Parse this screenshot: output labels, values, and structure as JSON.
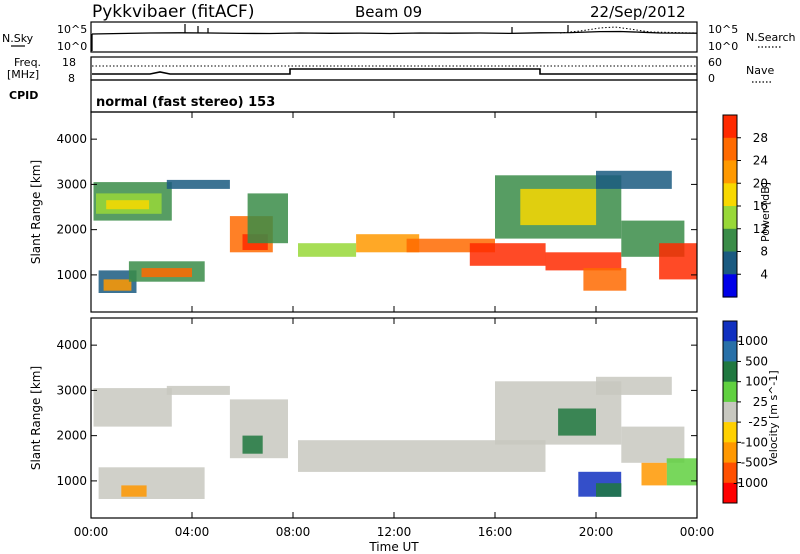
{
  "header": {
    "station": "Pykkvibaer (fitACF)",
    "beam": "Beam 09",
    "date": "22/Sep/2012"
  },
  "noise_panel": {
    "left_label": "N.Sky",
    "right_label": "N.Search",
    "left_ticks": [
      "10^5",
      "10^0"
    ],
    "right_ticks": [
      "10^5",
      "10^0"
    ]
  },
  "freq_panel": {
    "left_label_1": "Freq.",
    "left_label_2": "[MHz]",
    "right_label": "Nave",
    "left_ticks": [
      "18",
      "8"
    ],
    "right_ticks": [
      "60",
      "0"
    ]
  },
  "cpid": {
    "label": "CPID",
    "text": "normal (fast stereo) 153"
  },
  "chart_data": [
    {
      "type": "heatmap",
      "name": "power",
      "ylabel": "Slant Range [km]",
      "yticks": [
        "4000",
        "3000",
        "2000",
        "1000"
      ],
      "ylim": [
        180,
        4600
      ],
      "xlim": [
        0,
        24
      ],
      "colorbar": {
        "label": "Power [dB]",
        "ticks": [
          "28",
          "24",
          "20",
          "16",
          "12",
          "8",
          "4"
        ],
        "colors": [
          "#ff2a00",
          "#ff6a00",
          "#ff9900",
          "#f8d800",
          "#98d838",
          "#3a8c48",
          "#1a5a80",
          "#0000e8"
        ]
      },
      "series": [
        {
          "x0": 0.1,
          "x1": 3.2,
          "y0": 2200,
          "y1": 3050,
          "color": "#3a8c48"
        },
        {
          "x0": 0.2,
          "x1": 2.8,
          "y0": 2350,
          "y1": 2800,
          "color": "#98d838"
        },
        {
          "x0": 0.6,
          "x1": 2.3,
          "y0": 2450,
          "y1": 2650,
          "color": "#f8d800"
        },
        {
          "x0": 0.3,
          "x1": 1.8,
          "y0": 600,
          "y1": 1100,
          "color": "#1a5a80"
        },
        {
          "x0": 0.5,
          "x1": 1.6,
          "y0": 650,
          "y1": 900,
          "color": "#ff9900"
        },
        {
          "x0": 1.5,
          "x1": 4.5,
          "y0": 850,
          "y1": 1300,
          "color": "#3a8c48"
        },
        {
          "x0": 2.0,
          "x1": 4.0,
          "y0": 950,
          "y1": 1150,
          "color": "#ff6a00"
        },
        {
          "x0": 3.0,
          "x1": 5.5,
          "y0": 2900,
          "y1": 3100,
          "color": "#1a5a80"
        },
        {
          "x0": 5.5,
          "x1": 7.2,
          "y0": 1500,
          "y1": 2300,
          "color": "#ff6a00"
        },
        {
          "x0": 6.0,
          "x1": 7.0,
          "y0": 1550,
          "y1": 1900,
          "color": "#ff2a00"
        },
        {
          "x0": 6.2,
          "x1": 7.8,
          "y0": 1700,
          "y1": 2800,
          "color": "#3a8c48"
        },
        {
          "x0": 8.2,
          "x1": 10.5,
          "y0": 1400,
          "y1": 1700,
          "color": "#98d838"
        },
        {
          "x0": 10.5,
          "x1": 13.0,
          "y0": 1500,
          "y1": 1900,
          "color": "#ff9900"
        },
        {
          "x0": 12.5,
          "x1": 16.0,
          "y0": 1500,
          "y1": 1800,
          "color": "#ff6a00"
        },
        {
          "x0": 15.0,
          "x1": 18.0,
          "y0": 1200,
          "y1": 1700,
          "color": "#ff2a00"
        },
        {
          "x0": 16.0,
          "x1": 21.0,
          "y0": 1800,
          "y1": 3200,
          "color": "#3a8c48"
        },
        {
          "x0": 17.0,
          "x1": 20.0,
          "y0": 2100,
          "y1": 2900,
          "color": "#f8d800"
        },
        {
          "x0": 18.0,
          "x1": 21.0,
          "y0": 1100,
          "y1": 1500,
          "color": "#ff2a00"
        },
        {
          "x0": 19.5,
          "x1": 21.2,
          "y0": 650,
          "y1": 1150,
          "color": "#ff6a00"
        },
        {
          "x0": 21.0,
          "x1": 23.5,
          "y0": 1400,
          "y1": 2200,
          "color": "#3a8c48"
        },
        {
          "x0": 22.5,
          "x1": 24.0,
          "y0": 900,
          "y1": 1700,
          "color": "#ff2a00"
        },
        {
          "x0": 20.0,
          "x1": 23.0,
          "y0": 2900,
          "y1": 3300,
          "color": "#1a5a80"
        }
      ]
    },
    {
      "type": "heatmap",
      "name": "velocity",
      "ylabel": "Slant Range [km]",
      "xlabel": "Time UT",
      "yticks": [
        "4000",
        "3000",
        "2000",
        "1000"
      ],
      "xticks": [
        "00:00",
        "04:00",
        "08:00",
        "12:00",
        "16:00",
        "20:00",
        "00:00"
      ],
      "ylim": [
        180,
        4600
      ],
      "xlim": [
        0,
        24
      ],
      "colorbar": {
        "label": "Velocity [m s^-1]",
        "ticks": [
          "1000",
          "500",
          "100",
          "25",
          "-25",
          "-100",
          "-500",
          "-1000"
        ],
        "colors": [
          "#1030c0",
          "#2870a8",
          "#207840",
          "#60d040",
          "#c8c8c0",
          "#ffd000",
          "#ff9800",
          "#ff5000",
          "#ff0000"
        ]
      },
      "series": [
        {
          "x0": 0.1,
          "x1": 3.2,
          "y0": 2200,
          "y1": 3050,
          "color": "#c8c8c0"
        },
        {
          "x0": 0.3,
          "x1": 4.5,
          "y0": 600,
          "y1": 1300,
          "color": "#c8c8c0"
        },
        {
          "x0": 1.2,
          "x1": 2.2,
          "y0": 650,
          "y1": 900,
          "color": "#ff9800"
        },
        {
          "x0": 3.0,
          "x1": 5.5,
          "y0": 2900,
          "y1": 3100,
          "color": "#c8c8c0"
        },
        {
          "x0": 5.5,
          "x1": 7.8,
          "y0": 1500,
          "y1": 2800,
          "color": "#c8c8c0"
        },
        {
          "x0": 6.0,
          "x1": 6.8,
          "y0": 1600,
          "y1": 2000,
          "color": "#207840"
        },
        {
          "x0": 8.2,
          "x1": 18.0,
          "y0": 1200,
          "y1": 1900,
          "color": "#c8c8c0"
        },
        {
          "x0": 16.0,
          "x1": 21.0,
          "y0": 1800,
          "y1": 3200,
          "color": "#c8c8c0"
        },
        {
          "x0": 18.5,
          "x1": 20.0,
          "y0": 2000,
          "y1": 2600,
          "color": "#207840"
        },
        {
          "x0": 19.3,
          "x1": 21.0,
          "y0": 650,
          "y1": 1200,
          "color": "#1030c0"
        },
        {
          "x0": 20.0,
          "x1": 21.0,
          "y0": 650,
          "y1": 950,
          "color": "#207840"
        },
        {
          "x0": 21.0,
          "x1": 23.5,
          "y0": 1400,
          "y1": 2200,
          "color": "#c8c8c0"
        },
        {
          "x0": 22.8,
          "x1": 24.0,
          "y0": 900,
          "y1": 1500,
          "color": "#60d040"
        },
        {
          "x0": 21.8,
          "x1": 22.8,
          "y0": 900,
          "y1": 1400,
          "color": "#ff9800"
        },
        {
          "x0": 20.0,
          "x1": 23.0,
          "y0": 2900,
          "y1": 3300,
          "color": "#c8c8c0"
        }
      ]
    }
  ]
}
